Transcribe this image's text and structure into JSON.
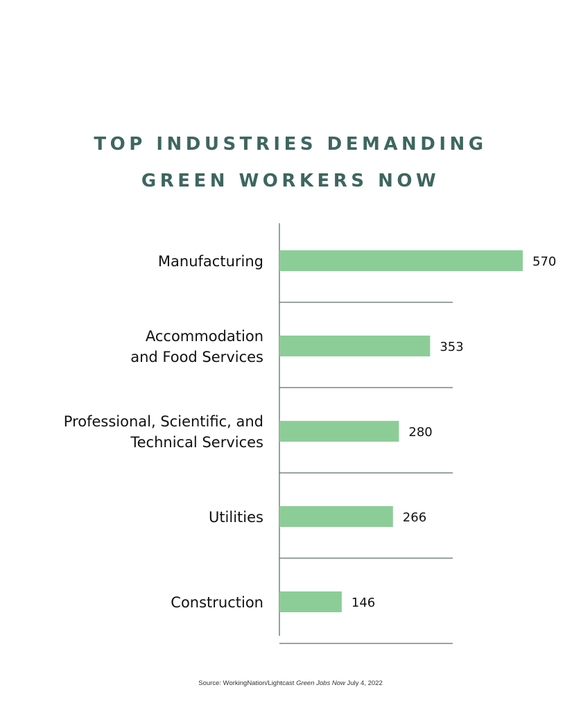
{
  "title_lines": [
    "TOP INDUSTRIES DEMANDING",
    "GREEN WORKERS NOW"
  ],
  "source": {
    "prefix": "Source: WorkingNation/Lightcast",
    "report": "Green Jobs Now",
    "date": "July 4, 2022"
  },
  "colors": {
    "title": "#3e6660",
    "bar": "#8ccd97",
    "axis": "#5b6f6c",
    "text": "#111111"
  },
  "chart_data": {
    "type": "bar",
    "orientation": "horizontal",
    "title": "TOP INDUSTRIES DEMANDING GREEN WORKERS NOW",
    "categories": [
      [
        "Manufacturing"
      ],
      [
        "Accommodation",
        "and Food Services"
      ],
      [
        "Professional, Scientific, and",
        "Technical Services"
      ],
      [
        "Utilities"
      ],
      [
        "Construction"
      ]
    ],
    "values": [
      570,
      353,
      280,
      266,
      146
    ],
    "xlabel": "",
    "ylabel": "",
    "grid": true
  }
}
